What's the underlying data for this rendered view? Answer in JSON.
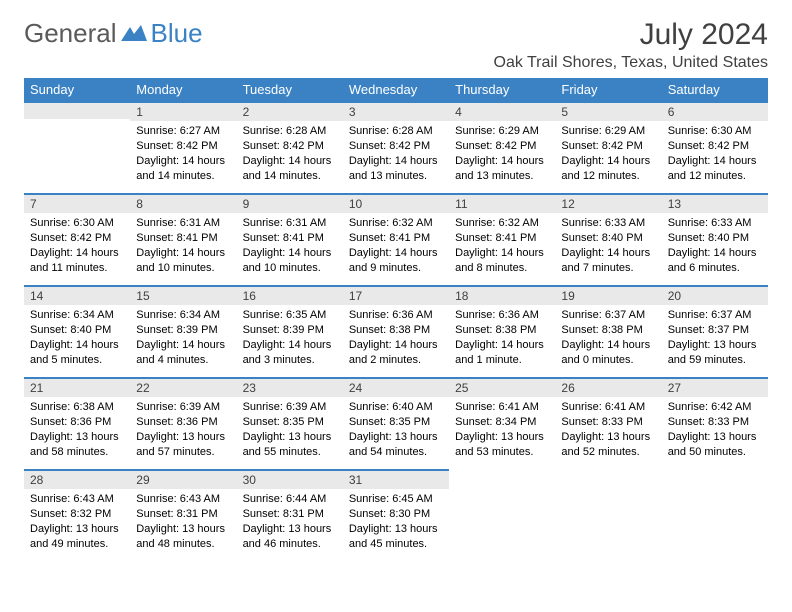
{
  "brand": {
    "part1": "General",
    "part2": "Blue"
  },
  "title": "July 2024",
  "location": "Oak Trail Shores, Texas, United States",
  "colors": {
    "header_bg": "#3b82c4",
    "header_text": "#ffffff",
    "daynum_bg": "#e9e9e9",
    "daynum_border": "#3b82c4",
    "body_text": "#000000",
    "title_text": "#404040",
    "logo_gray": "#5a5a5a",
    "logo_blue": "#3b82c4",
    "page_bg": "#ffffff"
  },
  "typography": {
    "month_title_fontsize": 30,
    "location_fontsize": 16,
    "weekday_fontsize": 13,
    "daynum_fontsize": 12,
    "cell_fontsize": 11
  },
  "weekdays": [
    "Sunday",
    "Monday",
    "Tuesday",
    "Wednesday",
    "Thursday",
    "Friday",
    "Saturday"
  ],
  "weeks": [
    [
      null,
      {
        "n": "1",
        "sr": "Sunrise: 6:27 AM",
        "ss": "Sunset: 8:42 PM",
        "d1": "Daylight: 14 hours",
        "d2": "and 14 minutes."
      },
      {
        "n": "2",
        "sr": "Sunrise: 6:28 AM",
        "ss": "Sunset: 8:42 PM",
        "d1": "Daylight: 14 hours",
        "d2": "and 14 minutes."
      },
      {
        "n": "3",
        "sr": "Sunrise: 6:28 AM",
        "ss": "Sunset: 8:42 PM",
        "d1": "Daylight: 14 hours",
        "d2": "and 13 minutes."
      },
      {
        "n": "4",
        "sr": "Sunrise: 6:29 AM",
        "ss": "Sunset: 8:42 PM",
        "d1": "Daylight: 14 hours",
        "d2": "and 13 minutes."
      },
      {
        "n": "5",
        "sr": "Sunrise: 6:29 AM",
        "ss": "Sunset: 8:42 PM",
        "d1": "Daylight: 14 hours",
        "d2": "and 12 minutes."
      },
      {
        "n": "6",
        "sr": "Sunrise: 6:30 AM",
        "ss": "Sunset: 8:42 PM",
        "d1": "Daylight: 14 hours",
        "d2": "and 12 minutes."
      }
    ],
    [
      {
        "n": "7",
        "sr": "Sunrise: 6:30 AM",
        "ss": "Sunset: 8:42 PM",
        "d1": "Daylight: 14 hours",
        "d2": "and 11 minutes."
      },
      {
        "n": "8",
        "sr": "Sunrise: 6:31 AM",
        "ss": "Sunset: 8:41 PM",
        "d1": "Daylight: 14 hours",
        "d2": "and 10 minutes."
      },
      {
        "n": "9",
        "sr": "Sunrise: 6:31 AM",
        "ss": "Sunset: 8:41 PM",
        "d1": "Daylight: 14 hours",
        "d2": "and 10 minutes."
      },
      {
        "n": "10",
        "sr": "Sunrise: 6:32 AM",
        "ss": "Sunset: 8:41 PM",
        "d1": "Daylight: 14 hours",
        "d2": "and 9 minutes."
      },
      {
        "n": "11",
        "sr": "Sunrise: 6:32 AM",
        "ss": "Sunset: 8:41 PM",
        "d1": "Daylight: 14 hours",
        "d2": "and 8 minutes."
      },
      {
        "n": "12",
        "sr": "Sunrise: 6:33 AM",
        "ss": "Sunset: 8:40 PM",
        "d1": "Daylight: 14 hours",
        "d2": "and 7 minutes."
      },
      {
        "n": "13",
        "sr": "Sunrise: 6:33 AM",
        "ss": "Sunset: 8:40 PM",
        "d1": "Daylight: 14 hours",
        "d2": "and 6 minutes."
      }
    ],
    [
      {
        "n": "14",
        "sr": "Sunrise: 6:34 AM",
        "ss": "Sunset: 8:40 PM",
        "d1": "Daylight: 14 hours",
        "d2": "and 5 minutes."
      },
      {
        "n": "15",
        "sr": "Sunrise: 6:34 AM",
        "ss": "Sunset: 8:39 PM",
        "d1": "Daylight: 14 hours",
        "d2": "and 4 minutes."
      },
      {
        "n": "16",
        "sr": "Sunrise: 6:35 AM",
        "ss": "Sunset: 8:39 PM",
        "d1": "Daylight: 14 hours",
        "d2": "and 3 minutes."
      },
      {
        "n": "17",
        "sr": "Sunrise: 6:36 AM",
        "ss": "Sunset: 8:38 PM",
        "d1": "Daylight: 14 hours",
        "d2": "and 2 minutes."
      },
      {
        "n": "18",
        "sr": "Sunrise: 6:36 AM",
        "ss": "Sunset: 8:38 PM",
        "d1": "Daylight: 14 hours",
        "d2": "and 1 minute."
      },
      {
        "n": "19",
        "sr": "Sunrise: 6:37 AM",
        "ss": "Sunset: 8:38 PM",
        "d1": "Daylight: 14 hours",
        "d2": "and 0 minutes."
      },
      {
        "n": "20",
        "sr": "Sunrise: 6:37 AM",
        "ss": "Sunset: 8:37 PM",
        "d1": "Daylight: 13 hours",
        "d2": "and 59 minutes."
      }
    ],
    [
      {
        "n": "21",
        "sr": "Sunrise: 6:38 AM",
        "ss": "Sunset: 8:36 PM",
        "d1": "Daylight: 13 hours",
        "d2": "and 58 minutes."
      },
      {
        "n": "22",
        "sr": "Sunrise: 6:39 AM",
        "ss": "Sunset: 8:36 PM",
        "d1": "Daylight: 13 hours",
        "d2": "and 57 minutes."
      },
      {
        "n": "23",
        "sr": "Sunrise: 6:39 AM",
        "ss": "Sunset: 8:35 PM",
        "d1": "Daylight: 13 hours",
        "d2": "and 55 minutes."
      },
      {
        "n": "24",
        "sr": "Sunrise: 6:40 AM",
        "ss": "Sunset: 8:35 PM",
        "d1": "Daylight: 13 hours",
        "d2": "and 54 minutes."
      },
      {
        "n": "25",
        "sr": "Sunrise: 6:41 AM",
        "ss": "Sunset: 8:34 PM",
        "d1": "Daylight: 13 hours",
        "d2": "and 53 minutes."
      },
      {
        "n": "26",
        "sr": "Sunrise: 6:41 AM",
        "ss": "Sunset: 8:33 PM",
        "d1": "Daylight: 13 hours",
        "d2": "and 52 minutes."
      },
      {
        "n": "27",
        "sr": "Sunrise: 6:42 AM",
        "ss": "Sunset: 8:33 PM",
        "d1": "Daylight: 13 hours",
        "d2": "and 50 minutes."
      }
    ],
    [
      {
        "n": "28",
        "sr": "Sunrise: 6:43 AM",
        "ss": "Sunset: 8:32 PM",
        "d1": "Daylight: 13 hours",
        "d2": "and 49 minutes."
      },
      {
        "n": "29",
        "sr": "Sunrise: 6:43 AM",
        "ss": "Sunset: 8:31 PM",
        "d1": "Daylight: 13 hours",
        "d2": "and 48 minutes."
      },
      {
        "n": "30",
        "sr": "Sunrise: 6:44 AM",
        "ss": "Sunset: 8:31 PM",
        "d1": "Daylight: 13 hours",
        "d2": "and 46 minutes."
      },
      {
        "n": "31",
        "sr": "Sunrise: 6:45 AM",
        "ss": "Sunset: 8:30 PM",
        "d1": "Daylight: 13 hours",
        "d2": "and 45 minutes."
      },
      null,
      null,
      null
    ]
  ]
}
